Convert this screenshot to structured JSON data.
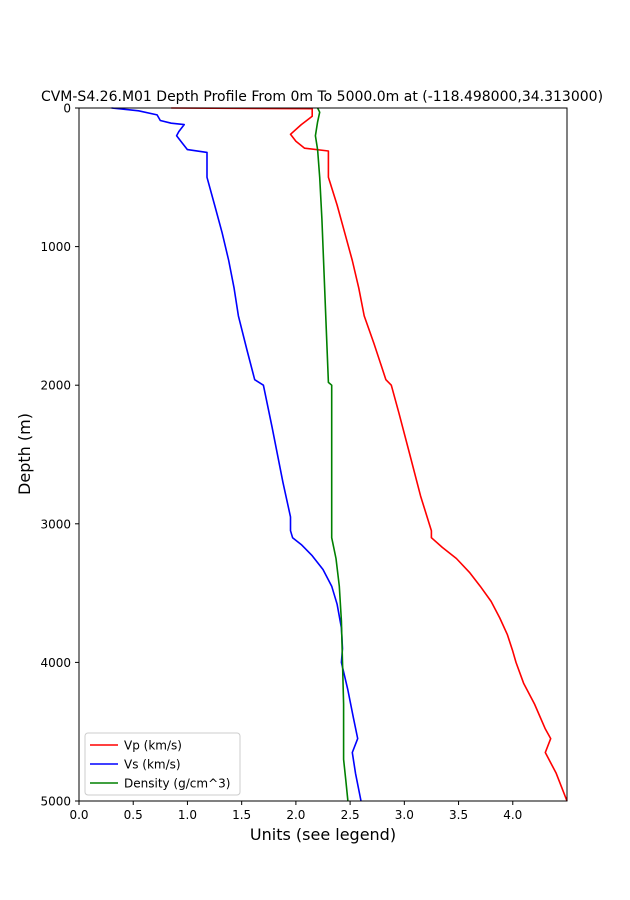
{
  "chart_data": {
    "type": "line",
    "title": "CVM-S4.26.M01 Depth Profile From 0m To 5000.0m at (-118.498000,34.313000)",
    "xlabel": "Units (see legend)",
    "ylabel": "Depth (m)",
    "xlim": [
      0,
      4.5
    ],
    "ylim": [
      5000,
      0
    ],
    "y_inverted": true,
    "x_ticks": [
      "0.0",
      "0.5",
      "1.0",
      "1.5",
      "2.0",
      "2.5",
      "3.0",
      "3.5",
      "4.0"
    ],
    "x_tick_values": [
      0,
      0.5,
      1.0,
      1.5,
      2.0,
      2.5,
      3.0,
      3.5,
      4.0
    ],
    "y_ticks": [
      "0",
      "1000",
      "2000",
      "3000",
      "4000",
      "5000"
    ],
    "y_tick_values": [
      0,
      1000,
      2000,
      3000,
      4000,
      5000
    ],
    "grid": false,
    "legend_position": "lower-left",
    "series": [
      {
        "name": "Vp (km/s)",
        "color": "#ff0000",
        "points": [
          [
            0.85,
            0
          ],
          [
            2.15,
            5
          ],
          [
            2.15,
            60
          ],
          [
            2.1,
            90
          ],
          [
            2.05,
            120
          ],
          [
            1.95,
            190
          ],
          [
            2.0,
            240
          ],
          [
            2.08,
            290
          ],
          [
            2.3,
            310
          ],
          [
            2.3,
            500
          ],
          [
            2.38,
            700
          ],
          [
            2.45,
            900
          ],
          [
            2.52,
            1100
          ],
          [
            2.58,
            1300
          ],
          [
            2.63,
            1500
          ],
          [
            2.72,
            1700
          ],
          [
            2.83,
            1960
          ],
          [
            2.88,
            2000
          ],
          [
            2.95,
            2200
          ],
          [
            3.05,
            2500
          ],
          [
            3.15,
            2800
          ],
          [
            3.25,
            3050
          ],
          [
            3.25,
            3100
          ],
          [
            3.35,
            3170
          ],
          [
            3.48,
            3250
          ],
          [
            3.6,
            3350
          ],
          [
            3.7,
            3450
          ],
          [
            3.8,
            3560
          ],
          [
            3.88,
            3680
          ],
          [
            3.95,
            3800
          ],
          [
            4.0,
            3920
          ],
          [
            4.03,
            4000
          ],
          [
            4.1,
            4150
          ],
          [
            4.2,
            4300
          ],
          [
            4.3,
            4480
          ],
          [
            4.35,
            4550
          ],
          [
            4.3,
            4650
          ],
          [
            4.4,
            4800
          ],
          [
            4.5,
            5000
          ]
        ]
      },
      {
        "name": "Vs (km/s)",
        "color": "#0000ff",
        "points": [
          [
            0.3,
            0
          ],
          [
            0.55,
            20
          ],
          [
            0.72,
            50
          ],
          [
            0.75,
            90
          ],
          [
            0.85,
            110
          ],
          [
            0.97,
            120
          ],
          [
            0.92,
            170
          ],
          [
            0.9,
            200
          ],
          [
            0.95,
            250
          ],
          [
            1.0,
            300
          ],
          [
            1.18,
            320
          ],
          [
            1.18,
            500
          ],
          [
            1.25,
            700
          ],
          [
            1.32,
            900
          ],
          [
            1.38,
            1100
          ],
          [
            1.43,
            1300
          ],
          [
            1.47,
            1500
          ],
          [
            1.55,
            1750
          ],
          [
            1.62,
            1960
          ],
          [
            1.7,
            2000
          ],
          [
            1.78,
            2300
          ],
          [
            1.88,
            2700
          ],
          [
            1.95,
            2950
          ],
          [
            1.95,
            3050
          ],
          [
            1.97,
            3100
          ],
          [
            2.05,
            3150
          ],
          [
            2.15,
            3230
          ],
          [
            2.25,
            3330
          ],
          [
            2.33,
            3450
          ],
          [
            2.38,
            3580
          ],
          [
            2.42,
            3750
          ],
          [
            2.43,
            3900
          ],
          [
            2.42,
            4000
          ],
          [
            2.48,
            4200
          ],
          [
            2.53,
            4400
          ],
          [
            2.57,
            4550
          ],
          [
            2.52,
            4650
          ],
          [
            2.55,
            4800
          ],
          [
            2.6,
            5000
          ]
        ]
      },
      {
        "name": "Density (g/cm^3)",
        "color": "#008000",
        "points": [
          [
            2.2,
            0
          ],
          [
            2.22,
            30
          ],
          [
            2.2,
            100
          ],
          [
            2.18,
            200
          ],
          [
            2.2,
            300
          ],
          [
            2.22,
            500
          ],
          [
            2.24,
            800
          ],
          [
            2.26,
            1200
          ],
          [
            2.28,
            1600
          ],
          [
            2.3,
            1980
          ],
          [
            2.33,
            2000
          ],
          [
            2.33,
            2500
          ],
          [
            2.33,
            3000
          ],
          [
            2.33,
            3100
          ],
          [
            2.37,
            3250
          ],
          [
            2.4,
            3450
          ],
          [
            2.42,
            3700
          ],
          [
            2.43,
            4000
          ],
          [
            2.44,
            4300
          ],
          [
            2.44,
            4550
          ],
          [
            2.44,
            4700
          ],
          [
            2.46,
            4850
          ],
          [
            2.48,
            5000
          ]
        ]
      }
    ]
  }
}
